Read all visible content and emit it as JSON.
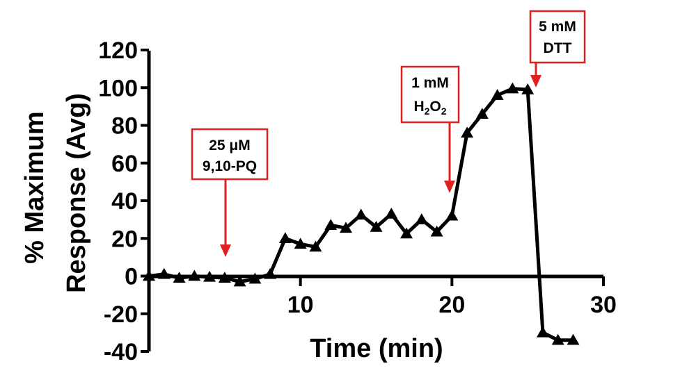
{
  "chart_data": {
    "type": "line",
    "title": "",
    "xlabel": "Time (min)",
    "ylabel_line1": "% Maximum",
    "ylabel_line2": "Response (Avg)",
    "xlim": [
      0,
      30
    ],
    "ylim": [
      -40,
      120
    ],
    "xticks": [
      10,
      20,
      30
    ],
    "yticks": [
      -40,
      -20,
      0,
      20,
      40,
      60,
      80,
      100,
      120
    ],
    "grid": false,
    "series_color": "#000000",
    "marker": "triangle-icon",
    "annotation_color": "#e02020",
    "x": [
      0,
      1,
      2,
      3,
      4,
      5,
      6,
      7,
      8,
      9,
      10,
      11,
      12,
      13,
      14,
      15,
      16,
      17,
      18,
      19,
      20,
      21,
      22,
      23,
      24,
      25,
      26,
      27,
      28
    ],
    "y": [
      0,
      1,
      -1,
      0,
      -0.5,
      -1,
      -3,
      -1.5,
      1,
      20,
      17,
      15.5,
      27,
      25.5,
      32.5,
      26,
      33,
      22.5,
      30,
      23.5,
      32,
      76,
      86,
      96,
      99.5,
      99,
      -30,
      -34,
      -34
    ],
    "annotations": [
      {
        "line1": "25 μM",
        "line2": "9,10-PQ",
        "x": 5,
        "y": 0
      },
      {
        "line1": "1 mM",
        "line2_main": "H",
        "line2_sub1": "2",
        "line2_mid": "O",
        "line2_sub2": "2",
        "x": 20,
        "y": 32
      },
      {
        "line1": "5 mM",
        "line2": "DTT",
        "x": 25,
        "y": 99
      }
    ]
  }
}
